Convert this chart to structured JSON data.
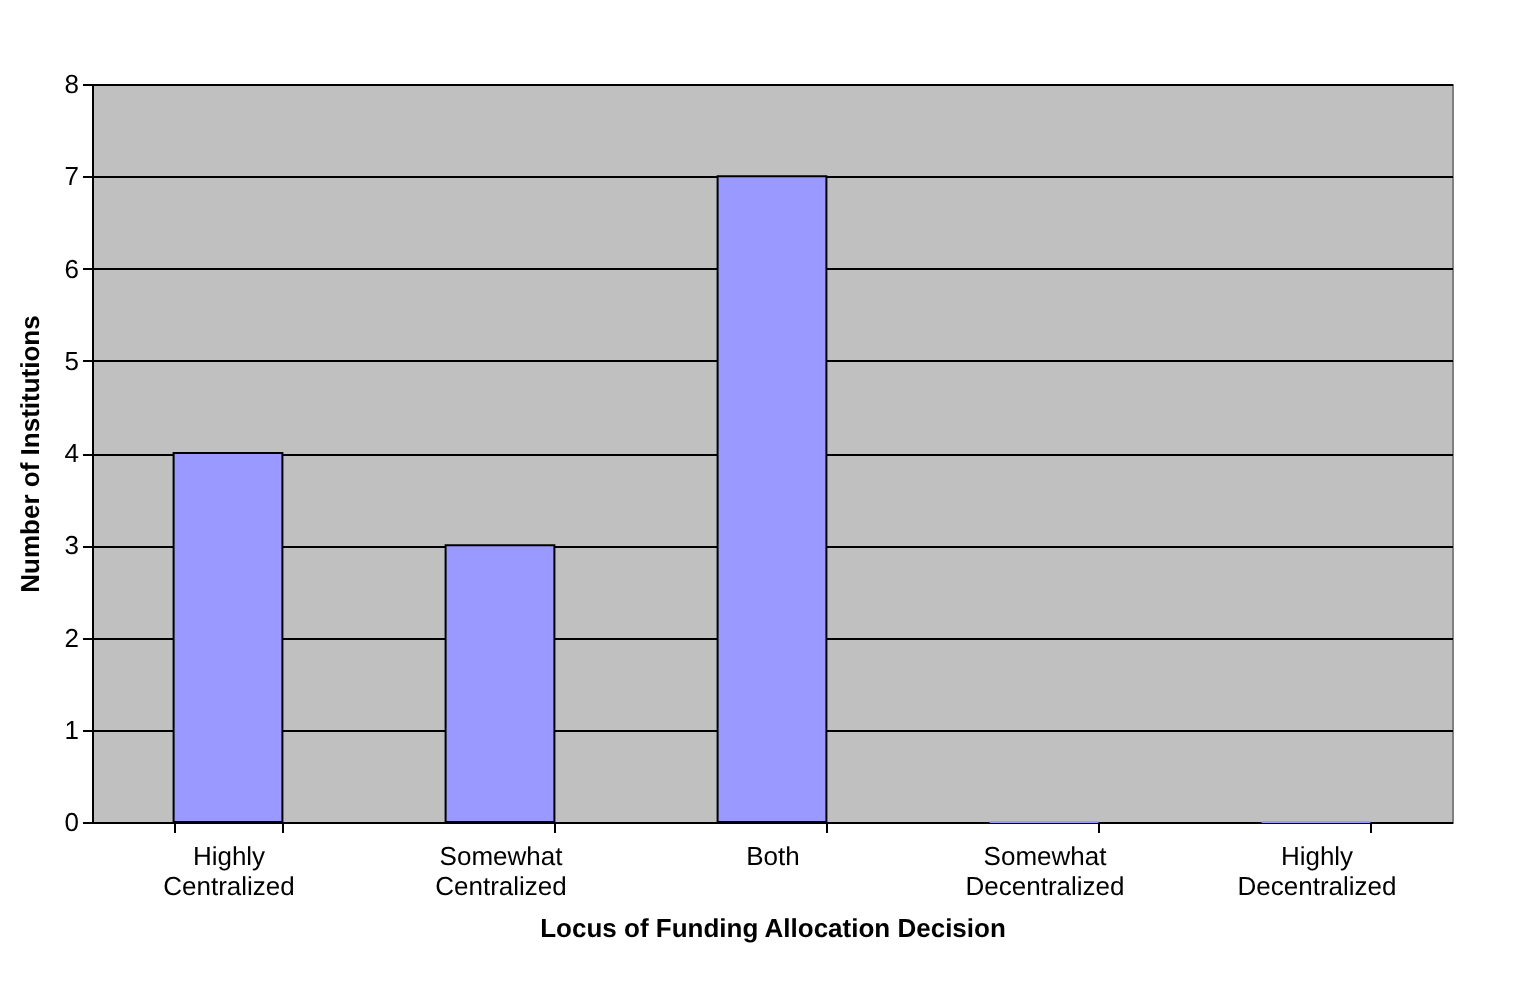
{
  "chart_data": {
    "type": "bar",
    "xlabel": "Locus of Funding Allocation Decision",
    "ylabel": "Number of Institutions",
    "categories": [
      "Highly Centralized",
      "Somewhat Centralized",
      "Both",
      "Somewhat Decentralized",
      "Highly Decentralized"
    ],
    "values": [
      4,
      3,
      7,
      0,
      0
    ],
    "color": "#9999ff",
    "ylim": [
      0,
      8
    ],
    "yticks": [
      0,
      1,
      2,
      3,
      4,
      5,
      6,
      7,
      8
    ],
    "grid": "y"
  }
}
